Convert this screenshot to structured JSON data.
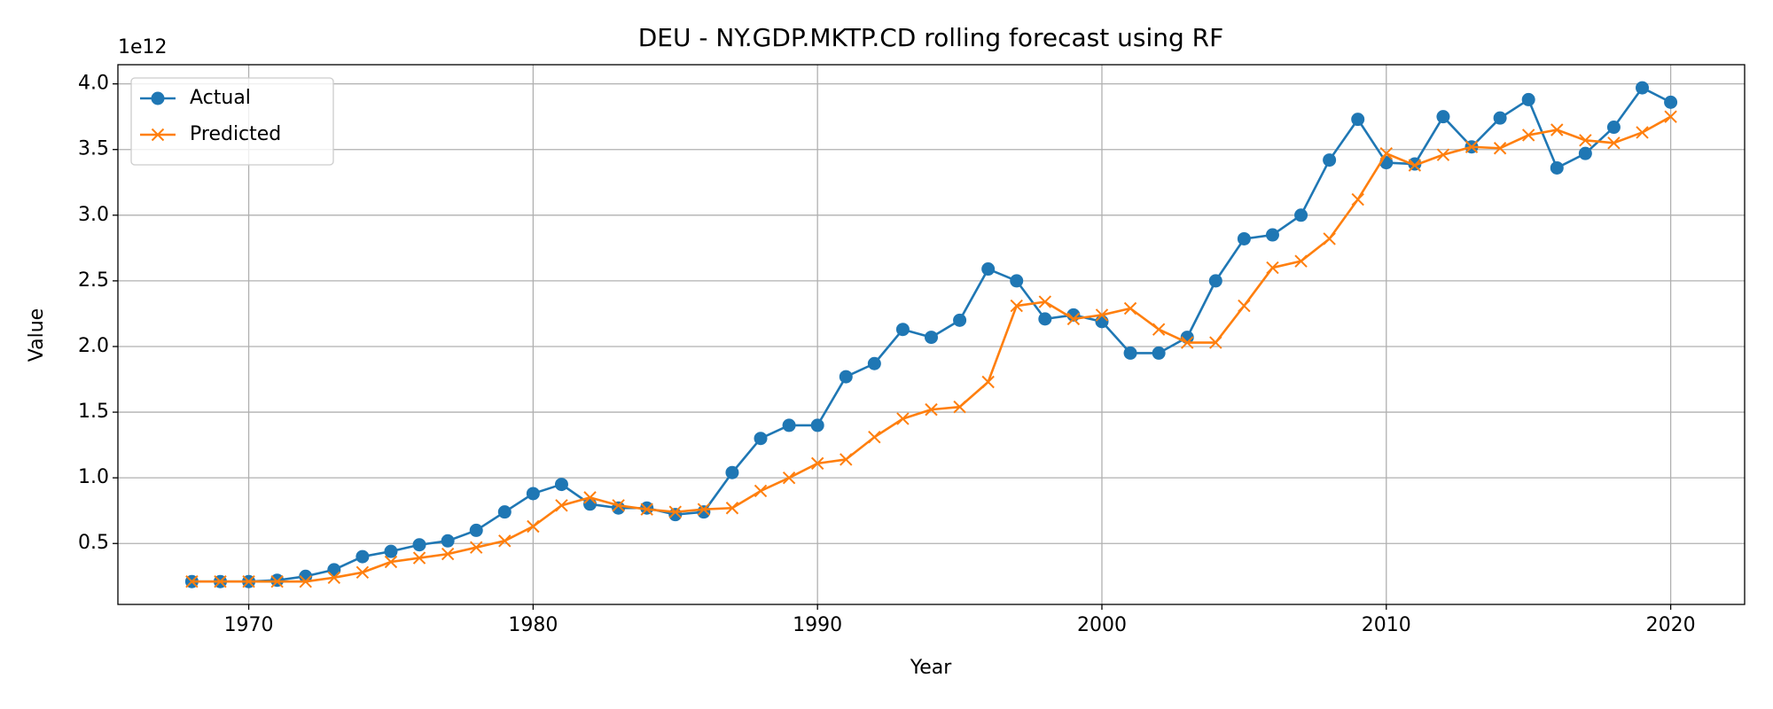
{
  "chart_data": {
    "type": "line",
    "title": "DEU - NY.GDP.MKTP.CD rolling forecast using RF",
    "xlabel": "Year",
    "ylabel": "Value",
    "y_offset_label": "1e12",
    "x": [
      1968,
      1969,
      1970,
      1971,
      1972,
      1973,
      1974,
      1975,
      1976,
      1977,
      1978,
      1979,
      1980,
      1981,
      1982,
      1983,
      1984,
      1985,
      1986,
      1987,
      1988,
      1989,
      1990,
      1991,
      1992,
      1993,
      1994,
      1995,
      1996,
      1997,
      1998,
      1999,
      2000,
      2001,
      2002,
      2003,
      2004,
      2005,
      2006,
      2007,
      2008,
      2009,
      2010,
      2011,
      2012,
      2013,
      2014,
      2015,
      2016,
      2017,
      2018,
      2019,
      2020
    ],
    "series": [
      {
        "name": "Actual",
        "color": "#1f77b4",
        "marker": "circle",
        "values": [
          0.21,
          0.21,
          0.21,
          0.22,
          0.25,
          0.3,
          0.4,
          0.44,
          0.49,
          0.52,
          0.6,
          0.74,
          0.88,
          0.95,
          0.8,
          0.77,
          0.77,
          0.72,
          0.74,
          1.04,
          1.3,
          1.4,
          1.4,
          1.77,
          1.87,
          2.13,
          2.07,
          2.2,
          2.59,
          2.5,
          2.21,
          2.24,
          2.19,
          1.95,
          1.95,
          2.07,
          2.5,
          2.82,
          2.85,
          3.0,
          3.42,
          3.73,
          3.4,
          3.39,
          3.75,
          3.52,
          3.74,
          3.88,
          3.36,
          3.47,
          3.67,
          3.97,
          3.86
        ]
      },
      {
        "name": "Predicted",
        "color": "#ff7f0e",
        "marker": "x",
        "values": [
          0.21,
          0.21,
          0.21,
          0.21,
          0.21,
          0.24,
          0.28,
          0.36,
          0.39,
          0.42,
          0.47,
          0.52,
          0.63,
          0.79,
          0.85,
          0.79,
          0.76,
          0.74,
          0.76,
          0.77,
          0.9,
          1.0,
          1.11,
          1.14,
          1.31,
          1.45,
          1.52,
          1.54,
          1.73,
          2.31,
          2.34,
          2.21,
          2.24,
          2.29,
          2.13,
          2.03,
          2.03,
          2.31,
          2.6,
          2.65,
          2.82,
          3.12,
          3.47,
          3.38,
          3.46,
          3.52,
          3.51,
          3.61,
          3.65,
          3.57,
          3.55,
          3.63,
          3.75
        ]
      }
    ],
    "xlim": [
      1965.4,
      2022.6
    ],
    "ylim": [
      0.036,
      4.146
    ],
    "xticks": [
      1970,
      1980,
      1990,
      2000,
      2010,
      2020
    ],
    "yticks": [
      0.5,
      {
        "value": 1,
        "label": "1.0"
      },
      1.5,
      {
        "value": 2,
        "label": "2.0"
      },
      2.5,
      {
        "value": 3,
        "label": "3.0"
      },
      3.5,
      {
        "value": 4,
        "label": "4.0"
      }
    ],
    "grid": true,
    "legend": "upper left"
  }
}
